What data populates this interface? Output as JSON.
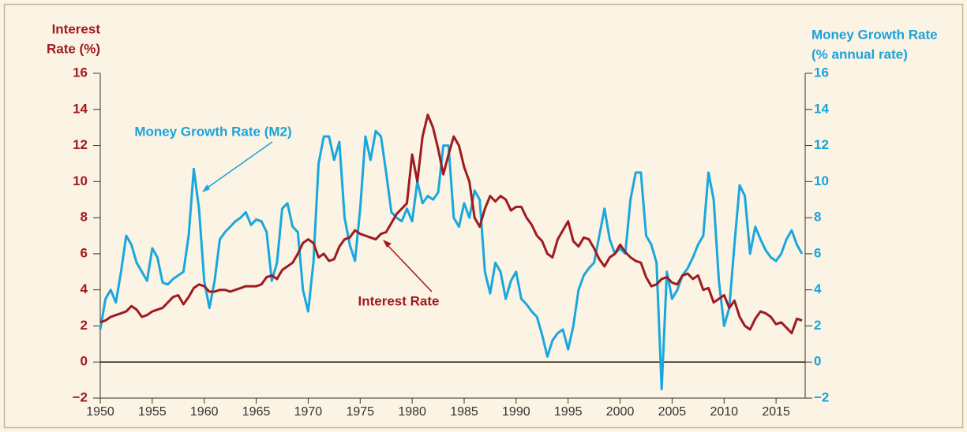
{
  "chart_data": {
    "type": "line",
    "ylabel": [
      "Interest",
      "Rate (%)"
    ],
    "y2label": [
      "Money Growth Rate",
      "(% annual rate)"
    ],
    "xlim": [
      1950,
      2017.8
    ],
    "xticks": [
      1950,
      1955,
      1960,
      1965,
      1970,
      1975,
      1980,
      1985,
      1990,
      1995,
      2000,
      2005,
      2010,
      2015
    ],
    "ylim": [
      -2,
      16
    ],
    "yticks": [
      {
        "value": -2,
        "label": "−2"
      },
      0,
      2,
      4,
      6,
      8,
      10,
      12,
      14,
      16
    ],
    "y2lim": [
      -2,
      16
    ],
    "y2ticks": [
      {
        "value": -2,
        "label": "−2"
      },
      0,
      2,
      4,
      6,
      8,
      10,
      12,
      14,
      16
    ],
    "x": [
      1950,
      1950.5,
      1951,
      1951.5,
      1952,
      1952.5,
      1953,
      1953.5,
      1954,
      1954.5,
      1955,
      1955.5,
      1956,
      1956.5,
      1957,
      1957.5,
      1958,
      1958.5,
      1959,
      1959.5,
      1960,
      1960.5,
      1961,
      1961.5,
      1962,
      1962.5,
      1963,
      1963.5,
      1964,
      1964.5,
      1965,
      1965.5,
      1966,
      1966.5,
      1967,
      1967.5,
      1968,
      1968.5,
      1969,
      1969.5,
      1970,
      1970.5,
      1971,
      1971.5,
      1972,
      1972.5,
      1973,
      1973.5,
      1974,
      1974.5,
      1975,
      1975.5,
      1976,
      1976.5,
      1977,
      1977.5,
      1978,
      1978.5,
      1979,
      1979.5,
      1980,
      1980.5,
      1981,
      1981.5,
      1982,
      1982.5,
      1983,
      1983.5,
      1984,
      1984.5,
      1985,
      1985.5,
      1986,
      1986.5,
      1987,
      1987.5,
      1988,
      1988.5,
      1989,
      1989.5,
      1990,
      1990.5,
      1991,
      1991.5,
      1992,
      1992.5,
      1993,
      1993.5,
      1994,
      1994.5,
      1995,
      1995.5,
      1996,
      1996.5,
      1997,
      1997.5,
      1998,
      1998.5,
      1999,
      1999.5,
      2000,
      2000.5,
      2001,
      2001.5,
      2002,
      2002.5,
      2003,
      2003.5,
      2004,
      2004.5,
      2005,
      2005.5,
      2006,
      2006.5,
      2007,
      2007.5,
      2008,
      2008.5,
      2009,
      2009.5,
      2010,
      2010.5,
      2011,
      2011.5,
      2012,
      2012.5,
      2013,
      2013.5,
      2014,
      2014.5,
      2015,
      2015.5,
      2016,
      2016.5,
      2017,
      2017.5
    ],
    "series": [
      {
        "name": "Interest Rate",
        "color": "#9e1b20",
        "axis": "y",
        "values": [
          2.2,
          2.3,
          2.5,
          2.6,
          2.7,
          2.8,
          3.1,
          2.9,
          2.5,
          2.6,
          2.8,
          2.9,
          3.0,
          3.3,
          3.6,
          3.7,
          3.2,
          3.6,
          4.1,
          4.3,
          4.2,
          3.9,
          3.9,
          4.0,
          4.0,
          3.9,
          4.0,
          4.1,
          4.2,
          4.2,
          4.2,
          4.3,
          4.7,
          4.8,
          4.6,
          5.1,
          5.3,
          5.5,
          6.0,
          6.6,
          6.8,
          6.6,
          5.8,
          6.0,
          5.6,
          5.7,
          6.4,
          6.8,
          6.9,
          7.3,
          7.1,
          7.0,
          6.9,
          6.8,
          7.1,
          7.2,
          7.7,
          8.2,
          8.5,
          8.8,
          11.5,
          10.0,
          12.5,
          13.7,
          13.0,
          11.8,
          10.4,
          11.5,
          12.5,
          12.0,
          10.8,
          10.0,
          8.0,
          7.5,
          8.5,
          9.2,
          8.9,
          9.2,
          9.0,
          8.4,
          8.6,
          8.6,
          8.0,
          7.6,
          7.0,
          6.7,
          6.0,
          5.8,
          6.8,
          7.3,
          7.8,
          6.7,
          6.4,
          6.9,
          6.8,
          6.3,
          5.7,
          5.3,
          5.8,
          6.0,
          6.5,
          6.1,
          5.8,
          5.6,
          5.5,
          4.7,
          4.2,
          4.3,
          4.6,
          4.7,
          4.4,
          4.3,
          4.8,
          4.9,
          4.6,
          4.8,
          4.0,
          4.1,
          3.3,
          3.5,
          3.7,
          3.0,
          3.4,
          2.5,
          2.0,
          1.8,
          2.4,
          2.8,
          2.7,
          2.5,
          2.1,
          2.2,
          1.9,
          1.6,
          2.4,
          2.3
        ]
      },
      {
        "name": "Money Growth Rate (M2)",
        "color": "#1aa7de",
        "axis": "y2",
        "values": [
          1.8,
          3.5,
          4.0,
          3.3,
          5.0,
          7.0,
          6.5,
          5.5,
          5.0,
          4.5,
          6.3,
          5.8,
          4.4,
          4.3,
          4.6,
          4.8,
          5.0,
          7.0,
          10.7,
          8.5,
          4.5,
          3.0,
          4.5,
          6.8,
          7.2,
          7.5,
          7.8,
          8.0,
          8.3,
          7.6,
          7.9,
          7.8,
          7.2,
          4.5,
          5.5,
          8.5,
          8.8,
          7.5,
          7.2,
          4.0,
          2.8,
          5.5,
          11.0,
          12.5,
          12.5,
          11.2,
          12.2,
          8.0,
          6.5,
          5.6,
          8.5,
          12.5,
          11.2,
          12.8,
          12.5,
          10.5,
          8.3,
          8.0,
          7.8,
          8.5,
          7.8,
          10.0,
          8.8,
          9.2,
          9.0,
          9.4,
          12.0,
          12.0,
          8.0,
          7.5,
          8.8,
          8.0,
          9.5,
          9.0,
          5.0,
          3.8,
          5.5,
          5.0,
          3.5,
          4.5,
          5.0,
          3.5,
          3.2,
          2.8,
          2.5,
          1.5,
          0.3,
          1.2,
          1.6,
          1.8,
          0.7,
          2.0,
          4.0,
          4.8,
          5.2,
          5.5,
          7.0,
          8.5,
          6.8,
          6.0,
          6.3,
          6.0,
          9.0,
          10.5,
          10.5,
          7.0,
          6.5,
          5.5,
          -1.5,
          5.0,
          3.5,
          4.0,
          4.8,
          5.2,
          5.8,
          6.5,
          7.0,
          10.5,
          9.0,
          4.5,
          2.0,
          3.0,
          6.5,
          9.8,
          9.2,
          6.0,
          7.5,
          6.8,
          6.2,
          5.8,
          5.6,
          6.0,
          6.8,
          7.3,
          6.5,
          6.0
        ]
      }
    ]
  }
}
